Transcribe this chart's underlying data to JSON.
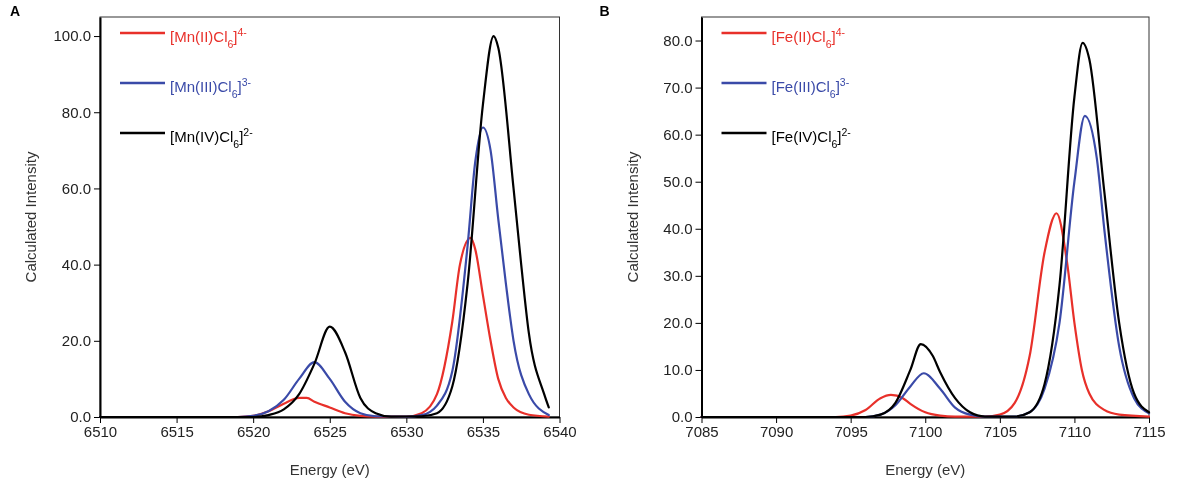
{
  "chart_data": [
    {
      "type": "line",
      "title": "A",
      "xlabel": "Energy (eV)",
      "ylabel": "Calculated Intensity",
      "xlim": [
        6510,
        6540
      ],
      "xticks": [
        6510,
        6515,
        6520,
        6525,
        6530,
        6535,
        6540
      ],
      "ylim": [
        0,
        105
      ],
      "yticks": [
        {
          "value": 0,
          "label": "0.0"
        },
        {
          "value": 20,
          "label": "20.0"
        },
        {
          "value": 40,
          "label": "40.0"
        },
        {
          "value": 60,
          "label": "60.0"
        },
        {
          "value": 80,
          "label": "80.0"
        },
        {
          "value": 100,
          "label": "100.0"
        }
      ],
      "legend": "top left",
      "grid": false,
      "series": [
        {
          "name": "[Mn(II)Cl$_{6}$]$^{4-}$",
          "color": "#e8302a",
          "x": [
            6510,
            6519,
            6520,
            6521,
            6522,
            6523,
            6523.5,
            6524,
            6525,
            6526,
            6527,
            6528,
            6530,
            6531,
            6532,
            6533,
            6533.5,
            6534.2,
            6534.5,
            6535,
            6535.5,
            6536,
            6536.5,
            6537,
            6538,
            6539.3
          ],
          "values": [
            0,
            0,
            0.3,
            1.5,
            3.5,
            5,
            5,
            4,
            2.5,
            1,
            0.3,
            0.1,
            0.1,
            1,
            6,
            25,
            40,
            47,
            44,
            32,
            20,
            10,
            5,
            2.5,
            0.6,
            0.1
          ]
        },
        {
          "name": "[Mn(III)Cl$_{6}$]$^{3-}$",
          "color": "#3a4aa8",
          "x": [
            6510,
            6519,
            6520,
            6521,
            6522,
            6523,
            6524,
            6525,
            6526,
            6527,
            6528,
            6530,
            6531,
            6532,
            6533,
            6534,
            6534.5,
            6535,
            6535.5,
            6536,
            6536.5,
            6537,
            6538,
            6539.3
          ],
          "values": [
            0,
            0,
            0.3,
            1.5,
            4.5,
            10,
            14.4,
            10,
            4,
            1,
            0.2,
            0.1,
            0.5,
            3,
            12,
            45,
            67,
            76,
            70,
            52,
            35,
            20,
            6,
            0.5
          ]
        },
        {
          "name": "[Mn(IV)Cl$_{6}$]$^{2-}$",
          "color": "#000000",
          "x": [
            6510,
            6520,
            6521,
            6522,
            6523,
            6524,
            6525,
            6526,
            6527,
            6528,
            6529,
            6531,
            6532,
            6533,
            6534,
            6535,
            6535.7,
            6536,
            6537,
            6537.5,
            6538,
            6539,
            6539.3
          ],
          "values": [
            0,
            0,
            0.5,
            2,
            6,
            14,
            23.7,
            17,
            5,
            1,
            0.1,
            0.2,
            1,
            8,
            35,
            82,
            100,
            97,
            60,
            40,
            22,
            6,
            2.5
          ]
        }
      ]
    },
    {
      "type": "line",
      "title": "B",
      "xlabel": "Energy (eV)",
      "ylabel": "Calculated Intensity",
      "xlim": [
        7085,
        7115
      ],
      "xticks": [
        7085,
        7090,
        7095,
        7100,
        7105,
        7110,
        7115
      ],
      "ylim": [
        0,
        85
      ],
      "yticks": [
        {
          "value": 0,
          "label": "0.0"
        },
        {
          "value": 10,
          "label": "10.0"
        },
        {
          "value": 20,
          "label": "20.0"
        },
        {
          "value": 30,
          "label": "30.0"
        },
        {
          "value": 40,
          "label": "40.0"
        },
        {
          "value": 50,
          "label": "50.0"
        },
        {
          "value": 60,
          "label": "60.0"
        },
        {
          "value": 70,
          "label": "70.0"
        },
        {
          "value": 80,
          "label": "80.0"
        }
      ],
      "legend": "top left",
      "grid": false,
      "series": [
        {
          "name": "[Fe(II)Cl$_{6}$]$^{4-}$",
          "color": "#e8302a",
          "x": [
            7085,
            7094,
            7095,
            7096,
            7097,
            7097.7,
            7098.5,
            7099,
            7100,
            7101,
            7102,
            7104,
            7105,
            7106,
            7107,
            7108,
            7108.8,
            7109.5,
            7110,
            7110.5,
            7111,
            7112,
            7113,
            7115
          ],
          "values": [
            0,
            0,
            0.3,
            1.5,
            4,
            4.7,
            4,
            2.8,
            1,
            0.3,
            0.1,
            0.1,
            0.5,
            3,
            13,
            35,
            43.3,
            33,
            20,
            10,
            5,
            1.5,
            0.5,
            0.1
          ]
        },
        {
          "name": "[Fe(III)Cl$_{6}$]$^{3-}$",
          "color": "#3a4aa8",
          "x": [
            7085,
            7096,
            7097,
            7098,
            7099,
            7099.9,
            7101,
            7102,
            7103,
            7104,
            7106,
            7107,
            7108,
            7109,
            7110,
            7110.7,
            7111.5,
            7112,
            7113,
            7114,
            7115
          ],
          "values": [
            0,
            0,
            0.5,
            2.5,
            6.5,
            9.3,
            6,
            2,
            0.5,
            0.1,
            0.1,
            1,
            6,
            20,
            50,
            64,
            55,
            40,
            15,
            4,
            0.8
          ]
        },
        {
          "name": "[Fe(IV)Cl$_{6}$]$^{2-}$",
          "color": "#000000",
          "x": [
            7085,
            7096,
            7097,
            7098,
            7099,
            7099.7,
            7100.5,
            7101,
            7102,
            7103,
            7104,
            7106,
            7107,
            7108,
            7109,
            7110,
            7110.55,
            7111,
            7112,
            7113,
            7114,
            7115
          ],
          "values": [
            0,
            0,
            0.5,
            3,
            10,
            15.5,
            13,
            9.5,
            4,
            1,
            0.1,
            0.1,
            1,
            7,
            28,
            68,
            79.5,
            76,
            48,
            20,
            5,
            1
          ]
        }
      ]
    }
  ]
}
